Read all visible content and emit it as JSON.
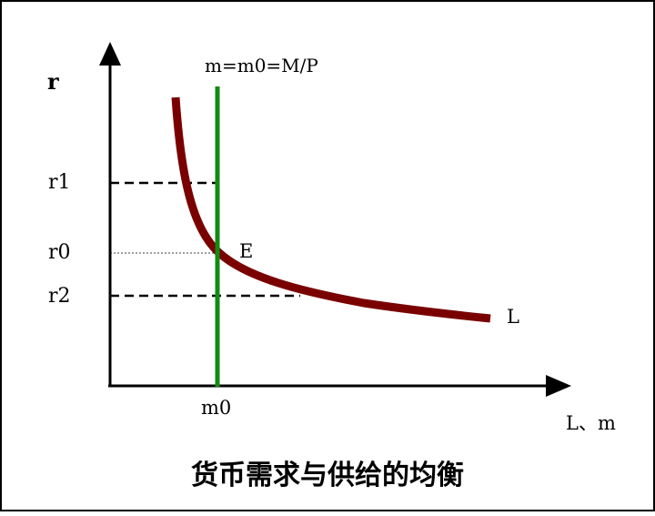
{
  "diagram": {
    "axes": {
      "y_label": "r",
      "x_label": "L、m"
    },
    "supply_label": "m=m0=M/P",
    "demand_label": "L",
    "equilibrium_label": "E",
    "rate_levels": [
      {
        "label": "r1"
      },
      {
        "label": "r0"
      },
      {
        "label": "r2"
      }
    ],
    "m_tick_label": "m0",
    "caption": "货币需求与供给的均衡",
    "colors": {
      "frame": "#000000",
      "axes": "#000000",
      "supply_line": "#138a13",
      "demand_curve": "#7a0000",
      "guides": "#000000"
    }
  }
}
